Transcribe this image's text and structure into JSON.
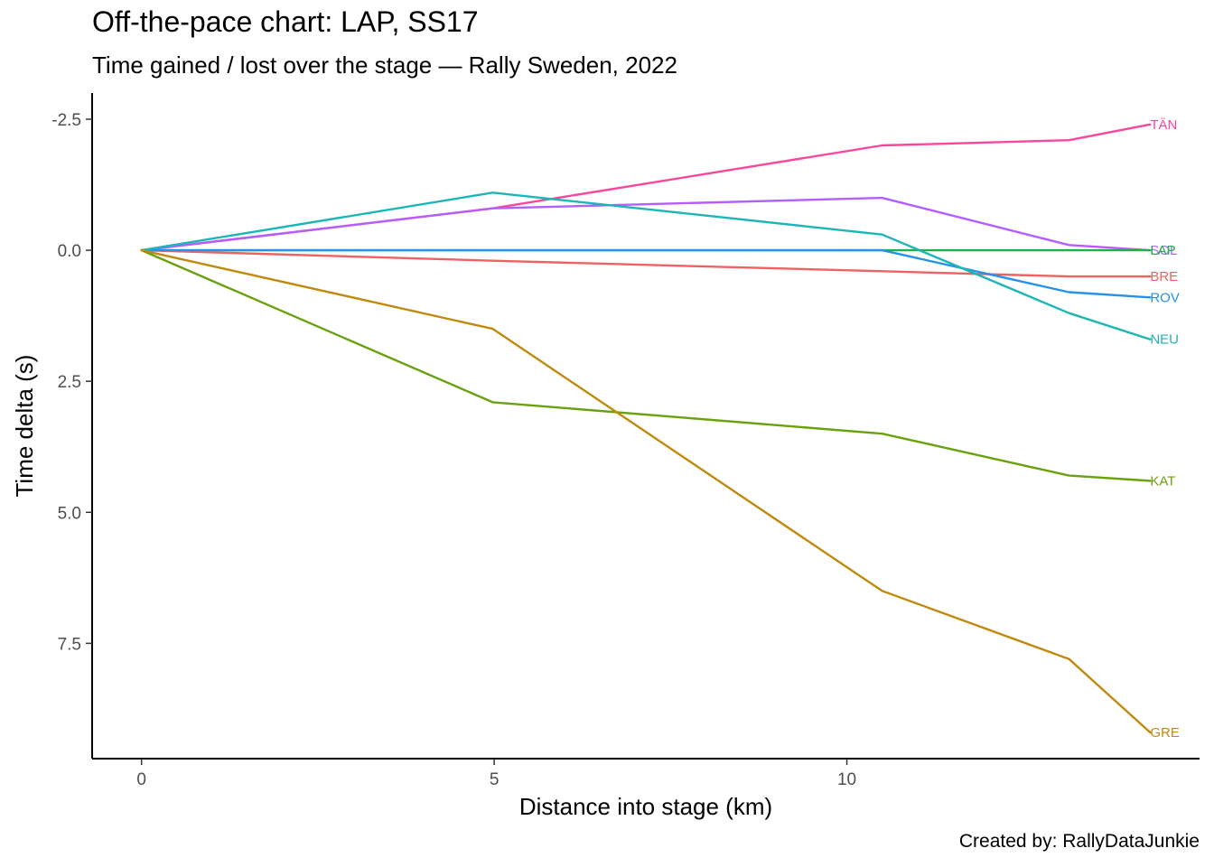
{
  "chart_data": {
    "type": "line",
    "title": "Off-the-pace chart: LAP, SS17",
    "subtitle": "Time gained / lost over the stage — Rally Sweden, 2022",
    "caption": "Created by: RallyDataJunkie",
    "xlabel": "Distance into stage (km)",
    "ylabel": "Time delta (s)",
    "xlim": [
      -0.7,
      15.0
    ],
    "ylim": [
      -3.0,
      9.7
    ],
    "y_reversed": true,
    "x_ticks": [
      {
        "value": 0,
        "label": "0"
      },
      {
        "value": 5,
        "label": "5"
      },
      {
        "value": 10,
        "label": "10"
      }
    ],
    "y_ticks": [
      {
        "value": -2.5,
        "label": "-2.5"
      },
      {
        "value": 0,
        "label": "0.0"
      },
      {
        "value": 2.5,
        "label": "2.5"
      },
      {
        "value": 5,
        "label": "5.0"
      },
      {
        "value": 7.5,
        "label": "7.5"
      }
    ],
    "grid": false,
    "legend": "direct labels at line ends",
    "x": [
      0,
      4.98,
      10.5,
      13.15,
      14.3
    ],
    "series": [
      {
        "name": "TÄN",
        "color": "#F8489C",
        "values": [
          0,
          -0.8,
          -2.0,
          -2.1,
          -2.4
        ]
      },
      {
        "name": "SOL",
        "color": "#B55EFF",
        "values": [
          0,
          -0.8,
          -1.0,
          -0.1,
          0.0
        ]
      },
      {
        "name": "LAP",
        "color": "#1FAF4A",
        "values": [
          0,
          0.0,
          0.0,
          0.0,
          0.0
        ]
      },
      {
        "name": "BRE",
        "color": "#EE6262",
        "values": [
          0,
          0.2,
          0.4,
          0.5,
          0.5
        ]
      },
      {
        "name": "ROV",
        "color": "#2492E8",
        "values": [
          0,
          0.0,
          0.0,
          0.8,
          0.9
        ]
      },
      {
        "name": "NEU",
        "color": "#1DB5B5",
        "values": [
          0,
          -1.1,
          -0.3,
          1.2,
          1.7
        ]
      },
      {
        "name": "KAT",
        "color": "#6AA10E",
        "values": [
          0,
          2.9,
          3.5,
          4.3,
          4.4
        ]
      },
      {
        "name": "GRE",
        "color": "#C08A0E",
        "values": [
          0,
          1.5,
          6.5,
          7.8,
          9.2
        ]
      }
    ]
  }
}
